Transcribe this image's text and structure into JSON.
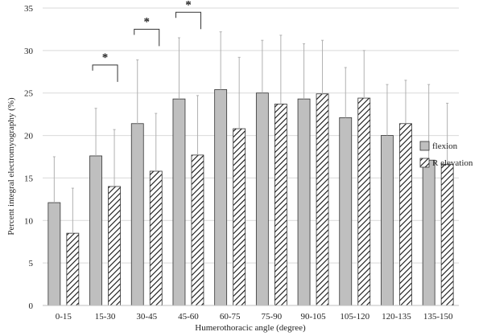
{
  "chart_data": {
    "type": "bar",
    "xlabel": "Humerothoracic angle (degree)",
    "ylabel": "Percent integral electromyography (%)",
    "ylim": [
      0,
      35
    ],
    "yticks": [
      0,
      5,
      10,
      15,
      20,
      25,
      30,
      35
    ],
    "grid": true,
    "legend_position": "right",
    "categories": [
      "0-15",
      "15-30",
      "30-45",
      "45-60",
      "60-75",
      "75-90",
      "90-105",
      "105-120",
      "120-135",
      "135-150"
    ],
    "series": [
      {
        "name": "flexion",
        "values": [
          12.1,
          17.6,
          21.4,
          24.3,
          25.4,
          25.0,
          24.3,
          22.1,
          20.0,
          17.1
        ],
        "error": [
          5.4,
          5.6,
          7.5,
          7.2,
          6.8,
          6.2,
          6.5,
          5.9,
          6.0,
          8.9
        ],
        "color": "#bfbfbf",
        "pattern": "solid"
      },
      {
        "name": "R elevation",
        "values": [
          8.5,
          14.0,
          15.8,
          17.7,
          20.8,
          23.7,
          24.9,
          24.4,
          21.4,
          16.6
        ],
        "error": [
          5.3,
          6.7,
          6.8,
          7.0,
          8.4,
          8.1,
          6.3,
          5.6,
          5.1,
          7.2
        ],
        "color": "#ffffff",
        "pattern": "hatched"
      }
    ],
    "annotations": [
      {
        "label": "*",
        "category_index": 1,
        "bracket_y": 28.3
      },
      {
        "label": "*",
        "category_index": 2,
        "bracket_y": 32.5
      },
      {
        "label": "*",
        "category_index": 3,
        "bracket_y": 34.5
      }
    ]
  }
}
